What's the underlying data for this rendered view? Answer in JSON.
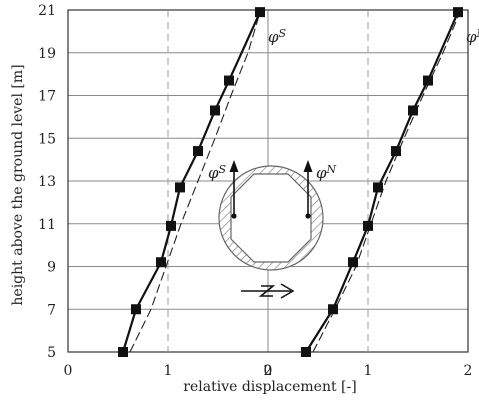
{
  "chart_data": {
    "type": "line",
    "ylabel": "height above the ground level   [m]",
    "xlabel": "relative displacement [-]",
    "y_ticks": [
      "5",
      "7",
      "9",
      "11",
      "13",
      "15",
      "17",
      "19",
      "21"
    ],
    "ylim": [
      5,
      21
    ],
    "x_ticks_left": [
      "0",
      "1",
      "2"
    ],
    "x_ticks_right": [
      "0",
      "1",
      "2"
    ],
    "xlim": [
      0,
      2
    ],
    "grid": true,
    "panels": [
      {
        "series_label": "φS",
        "label_sym": "φ",
        "label_sub": "S",
        "reference_x": 1,
        "series": [
          {
            "x": [
              0.55,
              0.68,
              0.93,
              1.03,
              1.12,
              1.3,
              1.47,
              1.61,
              1.92
            ],
            "y": [
              5.0,
              7.0,
              9.2,
              10.9,
              12.7,
              14.4,
              16.3,
              17.7,
              20.9
            ]
          },
          {
            "x": [
              0.62,
              0.83,
              0.98,
              1.13,
              1.3,
              1.47,
              1.63,
              1.8,
              1.92
            ],
            "y": [
              5.0,
              7.0,
              9.0,
              11.0,
              13.0,
              15.0,
              17.0,
              19.0,
              20.9
            ]
          }
        ]
      },
      {
        "series_label": "φN",
        "label_sym": "φ",
        "label_sub": "N",
        "reference_x": 1,
        "series": [
          {
            "x": [
              0.38,
              0.65,
              0.85,
              1.0,
              1.1,
              1.28,
              1.45,
              1.6,
              1.9
            ],
            "y": [
              5.0,
              7.0,
              9.2,
              10.9,
              12.7,
              14.4,
              16.3,
              17.7,
              20.9
            ]
          },
          {
            "x": [
              0.45,
              0.67,
              0.88,
              1.03,
              1.18,
              1.36,
              1.55,
              1.75,
              1.92
            ],
            "y": [
              5.0,
              7.0,
              9.0,
              11.0,
              13.0,
              15.0,
              17.0,
              19.0,
              20.9
            ]
          }
        ]
      }
    ],
    "inset": {
      "label_s_sym": "φ",
      "label_s_sub": "S",
      "label_n_sym": "φ",
      "label_n_sub": "N"
    }
  }
}
